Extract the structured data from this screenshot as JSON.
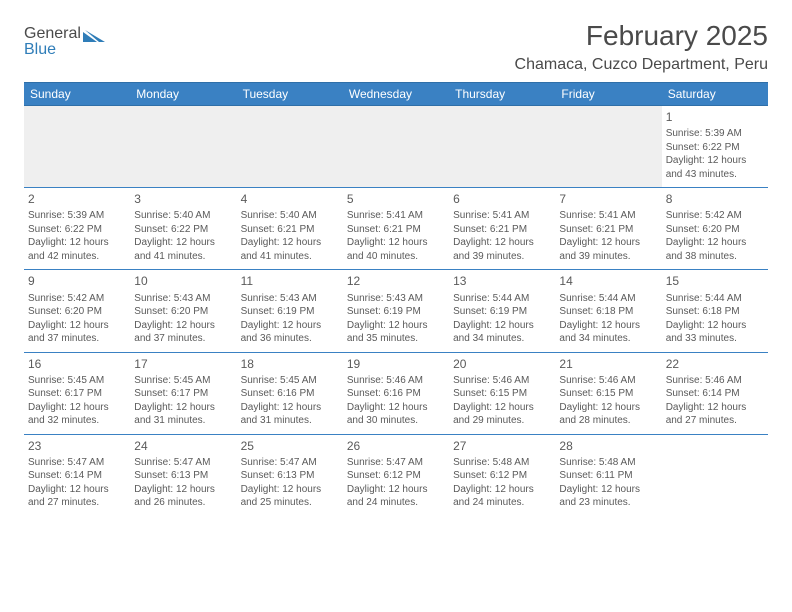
{
  "brand": {
    "part1": "General",
    "part2": "Blue",
    "color_general": "#6b6b6b",
    "color_blue": "#2f7db8"
  },
  "header": {
    "month": "February 2025",
    "location": "Chamaca, Cuzco Department, Peru"
  },
  "colors": {
    "header_bg": "#3a81c3",
    "rule": "#3a81c3",
    "empty_bg": "#efefef",
    "text": "#5a5a5a"
  },
  "dayHeaders": [
    "Sunday",
    "Monday",
    "Tuesday",
    "Wednesday",
    "Thursday",
    "Friday",
    "Saturday"
  ],
  "weeks": [
    [
      null,
      null,
      null,
      null,
      null,
      null,
      {
        "d": "1",
        "sr": "5:39 AM",
        "ss": "6:22 PM",
        "dl": "12 hours and 43 minutes."
      }
    ],
    [
      {
        "d": "2",
        "sr": "5:39 AM",
        "ss": "6:22 PM",
        "dl": "12 hours and 42 minutes."
      },
      {
        "d": "3",
        "sr": "5:40 AM",
        "ss": "6:22 PM",
        "dl": "12 hours and 41 minutes."
      },
      {
        "d": "4",
        "sr": "5:40 AM",
        "ss": "6:21 PM",
        "dl": "12 hours and 41 minutes."
      },
      {
        "d": "5",
        "sr": "5:41 AM",
        "ss": "6:21 PM",
        "dl": "12 hours and 40 minutes."
      },
      {
        "d": "6",
        "sr": "5:41 AM",
        "ss": "6:21 PM",
        "dl": "12 hours and 39 minutes."
      },
      {
        "d": "7",
        "sr": "5:41 AM",
        "ss": "6:21 PM",
        "dl": "12 hours and 39 minutes."
      },
      {
        "d": "8",
        "sr": "5:42 AM",
        "ss": "6:20 PM",
        "dl": "12 hours and 38 minutes."
      }
    ],
    [
      {
        "d": "9",
        "sr": "5:42 AM",
        "ss": "6:20 PM",
        "dl": "12 hours and 37 minutes."
      },
      {
        "d": "10",
        "sr": "5:43 AM",
        "ss": "6:20 PM",
        "dl": "12 hours and 37 minutes."
      },
      {
        "d": "11",
        "sr": "5:43 AM",
        "ss": "6:19 PM",
        "dl": "12 hours and 36 minutes."
      },
      {
        "d": "12",
        "sr": "5:43 AM",
        "ss": "6:19 PM",
        "dl": "12 hours and 35 minutes."
      },
      {
        "d": "13",
        "sr": "5:44 AM",
        "ss": "6:19 PM",
        "dl": "12 hours and 34 minutes."
      },
      {
        "d": "14",
        "sr": "5:44 AM",
        "ss": "6:18 PM",
        "dl": "12 hours and 34 minutes."
      },
      {
        "d": "15",
        "sr": "5:44 AM",
        "ss": "6:18 PM",
        "dl": "12 hours and 33 minutes."
      }
    ],
    [
      {
        "d": "16",
        "sr": "5:45 AM",
        "ss": "6:17 PM",
        "dl": "12 hours and 32 minutes."
      },
      {
        "d": "17",
        "sr": "5:45 AM",
        "ss": "6:17 PM",
        "dl": "12 hours and 31 minutes."
      },
      {
        "d": "18",
        "sr": "5:45 AM",
        "ss": "6:16 PM",
        "dl": "12 hours and 31 minutes."
      },
      {
        "d": "19",
        "sr": "5:46 AM",
        "ss": "6:16 PM",
        "dl": "12 hours and 30 minutes."
      },
      {
        "d": "20",
        "sr": "5:46 AM",
        "ss": "6:15 PM",
        "dl": "12 hours and 29 minutes."
      },
      {
        "d": "21",
        "sr": "5:46 AM",
        "ss": "6:15 PM",
        "dl": "12 hours and 28 minutes."
      },
      {
        "d": "22",
        "sr": "5:46 AM",
        "ss": "6:14 PM",
        "dl": "12 hours and 27 minutes."
      }
    ],
    [
      {
        "d": "23",
        "sr": "5:47 AM",
        "ss": "6:14 PM",
        "dl": "12 hours and 27 minutes."
      },
      {
        "d": "24",
        "sr": "5:47 AM",
        "ss": "6:13 PM",
        "dl": "12 hours and 26 minutes."
      },
      {
        "d": "25",
        "sr": "5:47 AM",
        "ss": "6:13 PM",
        "dl": "12 hours and 25 minutes."
      },
      {
        "d": "26",
        "sr": "5:47 AM",
        "ss": "6:12 PM",
        "dl": "12 hours and 24 minutes."
      },
      {
        "d": "27",
        "sr": "5:48 AM",
        "ss": "6:12 PM",
        "dl": "12 hours and 24 minutes."
      },
      {
        "d": "28",
        "sr": "5:48 AM",
        "ss": "6:11 PM",
        "dl": "12 hours and 23 minutes."
      },
      null
    ]
  ],
  "labels": {
    "sunrise": "Sunrise:",
    "sunset": "Sunset:",
    "daylight": "Daylight:"
  }
}
